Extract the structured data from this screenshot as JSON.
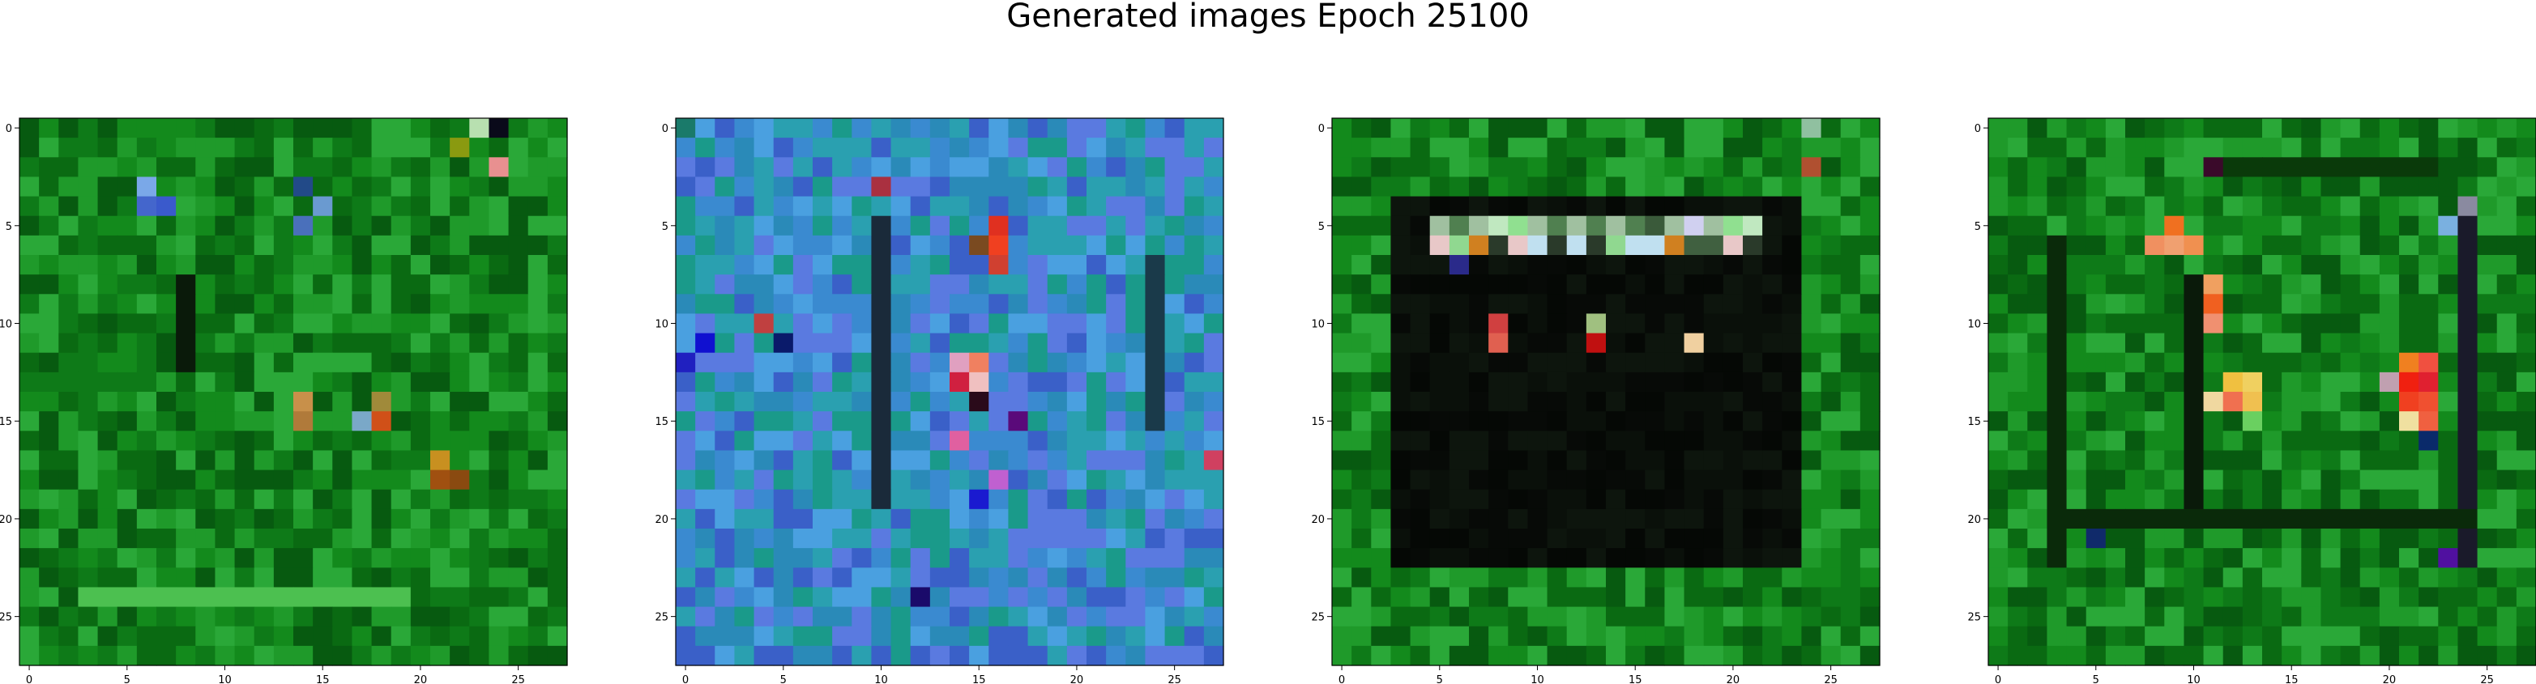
{
  "figure": {
    "title": "Generated images Epoch 25100"
  },
  "image_grid": {
    "size": 28,
    "x_ticks": [
      "0",
      "5",
      "10",
      "15",
      "20",
      "25"
    ],
    "y_ticks": [
      "0",
      "5",
      "10",
      "15",
      "20",
      "25"
    ],
    "panels": [
      {
        "name": "generated-image-1",
        "base_colors": [
          "#0a6a12",
          "#138a1c",
          "#0e7a18",
          "#1f9a2a",
          "#075a10",
          "#2aa838"
        ],
        "features": [
          {
            "kind": "cell",
            "x": 23,
            "y": 0,
            "color": "#b8e0b0"
          },
          {
            "kind": "cell",
            "x": 24,
            "y": 0,
            "color": "#0a0a1a"
          },
          {
            "kind": "cell",
            "x": 24,
            "y": 2,
            "color": "#e89090"
          },
          {
            "kind": "cell",
            "x": 22,
            "y": 1,
            "color": "#8a9a10"
          },
          {
            "kind": "cell",
            "x": 6,
            "y": 3,
            "color": "#7aa8e8"
          },
          {
            "kind": "cell",
            "x": 6,
            "y": 4,
            "color": "#4466cc"
          },
          {
            "kind": "cell",
            "x": 7,
            "y": 4,
            "color": "#3a5acc"
          },
          {
            "kind": "cell",
            "x": 14,
            "y": 3,
            "color": "#224a88"
          },
          {
            "kind": "cell",
            "x": 15,
            "y": 4,
            "color": "#6a9ad0"
          },
          {
            "kind": "cell",
            "x": 14,
            "y": 5,
            "color": "#4a70bb"
          },
          {
            "kind": "col",
            "x": 8,
            "y0": 8,
            "y1": 12,
            "color": "#0a1a0a"
          },
          {
            "kind": "cell",
            "x": 14,
            "y": 14,
            "color": "#c8904a"
          },
          {
            "kind": "cell",
            "x": 14,
            "y": 15,
            "color": "#b07a3a"
          },
          {
            "kind": "cell",
            "x": 18,
            "y": 14,
            "color": "#a08a3a"
          },
          {
            "kind": "cell",
            "x": 17,
            "y": 15,
            "color": "#7aa8c8"
          },
          {
            "kind": "cell",
            "x": 18,
            "y": 15,
            "color": "#d05018"
          },
          {
            "kind": "cell",
            "x": 21,
            "y": 17,
            "color": "#c89020"
          },
          {
            "kind": "cell",
            "x": 21,
            "y": 18,
            "color": "#a05010"
          },
          {
            "kind": "cell",
            "x": 22,
            "y": 18,
            "color": "#8a4a10"
          },
          {
            "kind": "row",
            "y": 24,
            "x0": 3,
            "x1": 19,
            "color": "#4cc050"
          }
        ]
      },
      {
        "name": "generated-image-2",
        "base_colors": [
          "#3a8ad0",
          "#2aa0b0",
          "#5a7ae0",
          "#1a9a8a",
          "#4aa0e0",
          "#3a60c8",
          "#2a8ab8"
        ],
        "features": [
          {
            "kind": "cell",
            "x": 0,
            "y": 0,
            "color": "#1a7a6a"
          },
          {
            "kind": "cell",
            "x": 10,
            "y": 3,
            "color": "#aa3040"
          },
          {
            "kind": "cell",
            "x": 16,
            "y": 5,
            "color": "#e03020"
          },
          {
            "kind": "cell",
            "x": 16,
            "y": 6,
            "color": "#f04020"
          },
          {
            "kind": "cell",
            "x": 16,
            "y": 7,
            "color": "#d04030"
          },
          {
            "kind": "cell",
            "x": 15,
            "y": 6,
            "color": "#7a4a20"
          },
          {
            "kind": "cell",
            "x": 4,
            "y": 10,
            "color": "#c04040"
          },
          {
            "kind": "cell",
            "x": 5,
            "y": 11,
            "color": "#0a1a6a"
          },
          {
            "kind": "cell",
            "x": 1,
            "y": 11,
            "color": "#1010d0"
          },
          {
            "kind": "cell",
            "x": 0,
            "y": 12,
            "color": "#2020c0"
          },
          {
            "kind": "cell",
            "x": 15,
            "y": 12,
            "color": "#f08060"
          },
          {
            "kind": "cell",
            "x": 14,
            "y": 12,
            "color": "#e0a0c0"
          },
          {
            "kind": "cell",
            "x": 15,
            "y": 13,
            "color": "#f0c0c0"
          },
          {
            "kind": "cell",
            "x": 14,
            "y": 13,
            "color": "#d02040"
          },
          {
            "kind": "cell",
            "x": 15,
            "y": 14,
            "color": "#2a0a1a"
          },
          {
            "kind": "cell",
            "x": 17,
            "y": 15,
            "color": "#5a0a7a"
          },
          {
            "kind": "cell",
            "x": 14,
            "y": 16,
            "color": "#e060a0"
          },
          {
            "kind": "cell",
            "x": 16,
            "y": 18,
            "color": "#c060d0"
          },
          {
            "kind": "cell",
            "x": 15,
            "y": 19,
            "color": "#1a1ad0"
          },
          {
            "kind": "cell",
            "x": 27,
            "y": 17,
            "color": "#d04060"
          },
          {
            "kind": "cell",
            "x": 12,
            "y": 24,
            "color": "#1a0a6a"
          },
          {
            "kind": "col",
            "x": 10,
            "y0": 5,
            "y1": 19,
            "color": "#1a2a3a"
          },
          {
            "kind": "col",
            "x": 24,
            "y0": 7,
            "y1": 15,
            "color": "#1a3a4a"
          }
        ]
      },
      {
        "name": "generated-image-3",
        "base_colors": [
          "#0a6a12",
          "#138a1c",
          "#0e7a18",
          "#1f9a2a",
          "#075a10",
          "#2aa838"
        ],
        "features": [
          {
            "kind": "rect",
            "x0": 3,
            "y0": 4,
            "x1": 23,
            "y1": 22,
            "colors": [
              "#050805",
              "#0a100a",
              "#070a07",
              "#0d150d"
            ]
          },
          {
            "kind": "row",
            "y": 5,
            "x0": 5,
            "x1": 21,
            "colors": [
              "#a0c0a0",
              "#d0d0f0",
              "#508050",
              "#90e090",
              "#c0e8c0",
              "#3a5a3a",
              "#60a060"
            ]
          },
          {
            "kind": "row",
            "y": 6,
            "x0": 5,
            "x1": 21,
            "colors": [
              "#2a3a2a",
              "#d08020",
              "#a0b0a0",
              "#90d890",
              "#e8c8c8",
              "#406040",
              "#c0e0f0"
            ]
          },
          {
            "kind": "cell",
            "x": 6,
            "y": 7,
            "color": "#2a2a8a"
          },
          {
            "kind": "cell",
            "x": 8,
            "y": 10,
            "color": "#d04040"
          },
          {
            "kind": "cell",
            "x": 8,
            "y": 11,
            "color": "#e06050"
          },
          {
            "kind": "cell",
            "x": 13,
            "y": 10,
            "color": "#a0c080"
          },
          {
            "kind": "cell",
            "x": 13,
            "y": 11,
            "color": "#c01010"
          },
          {
            "kind": "cell",
            "x": 18,
            "y": 11,
            "color": "#f0d0a0"
          },
          {
            "kind": "cell",
            "x": 24,
            "y": 2,
            "color": "#b05030"
          },
          {
            "kind": "cell",
            "x": 24,
            "y": 0,
            "color": "#90c0a0"
          }
        ]
      },
      {
        "name": "generated-image-4",
        "base_colors": [
          "#0a6a12",
          "#138a1c",
          "#0e7a18",
          "#1f9a2a",
          "#075a10",
          "#2aa838"
        ],
        "features": [
          {
            "kind": "row",
            "y": 2,
            "x0": 11,
            "x1": 22,
            "color": "#0a3a0a"
          },
          {
            "kind": "cell",
            "x": 11,
            "y": 2,
            "color": "#3a0a2a"
          },
          {
            "kind": "cell",
            "x": 9,
            "y": 5,
            "color": "#f07020"
          },
          {
            "kind": "cell",
            "x": 8,
            "y": 6,
            "color": "#f09060"
          },
          {
            "kind": "cell",
            "x": 9,
            "y": 6,
            "color": "#f0a070"
          },
          {
            "kind": "cell",
            "x": 10,
            "y": 6,
            "color": "#f09050"
          },
          {
            "kind": "cell",
            "x": 11,
            "y": 8,
            "color": "#f0a060"
          },
          {
            "kind": "cell",
            "x": 11,
            "y": 9,
            "color": "#f06020"
          },
          {
            "kind": "cell",
            "x": 11,
            "y": 10,
            "color": "#f09070"
          },
          {
            "kind": "col",
            "x": 3,
            "y0": 6,
            "y1": 22,
            "color": "#0a2a0a"
          },
          {
            "kind": "col",
            "x": 10,
            "y0": 8,
            "y1": 20,
            "color": "#0a1a0a"
          },
          {
            "kind": "col",
            "x": 24,
            "y0": 5,
            "y1": 22,
            "color": "#1a1a2a"
          },
          {
            "kind": "cell",
            "x": 23,
            "y": 5,
            "color": "#7ab0e0"
          },
          {
            "kind": "cell",
            "x": 24,
            "y": 4,
            "color": "#8a8aa0"
          },
          {
            "kind": "cell",
            "x": 12,
            "y": 13,
            "color": "#f0c040"
          },
          {
            "kind": "cell",
            "x": 13,
            "y": 13,
            "color": "#f0d060"
          },
          {
            "kind": "cell",
            "x": 11,
            "y": 14,
            "color": "#f0d8a0"
          },
          {
            "kind": "cell",
            "x": 12,
            "y": 14,
            "color": "#f07050"
          },
          {
            "kind": "cell",
            "x": 13,
            "y": 14,
            "color": "#f0c050"
          },
          {
            "kind": "cell",
            "x": 13,
            "y": 15,
            "color": "#6ad060"
          },
          {
            "kind": "cell",
            "x": 21,
            "y": 12,
            "color": "#f08020"
          },
          {
            "kind": "cell",
            "x": 22,
            "y": 12,
            "color": "#f05040"
          },
          {
            "kind": "cell",
            "x": 21,
            "y": 13,
            "color": "#f02010"
          },
          {
            "kind": "cell",
            "x": 22,
            "y": 13,
            "color": "#e02030"
          },
          {
            "kind": "cell",
            "x": 20,
            "y": 13,
            "color": "#c0a0b0"
          },
          {
            "kind": "cell",
            "x": 21,
            "y": 14,
            "color": "#f04020"
          },
          {
            "kind": "cell",
            "x": 22,
            "y": 14,
            "color": "#f05030"
          },
          {
            "kind": "cell",
            "x": 21,
            "y": 15,
            "color": "#f0e0a0"
          },
          {
            "kind": "cell",
            "x": 22,
            "y": 15,
            "color": "#f06040"
          },
          {
            "kind": "cell",
            "x": 22,
            "y": 16,
            "color": "#0a2a6a"
          },
          {
            "kind": "row",
            "y": 20,
            "x0": 3,
            "x1": 24,
            "color": "#0a2a0a"
          },
          {
            "kind": "cell",
            "x": 23,
            "y": 22,
            "color": "#5010a0"
          },
          {
            "kind": "cell",
            "x": 5,
            "y": 21,
            "color": "#102a6a"
          }
        ]
      }
    ]
  }
}
